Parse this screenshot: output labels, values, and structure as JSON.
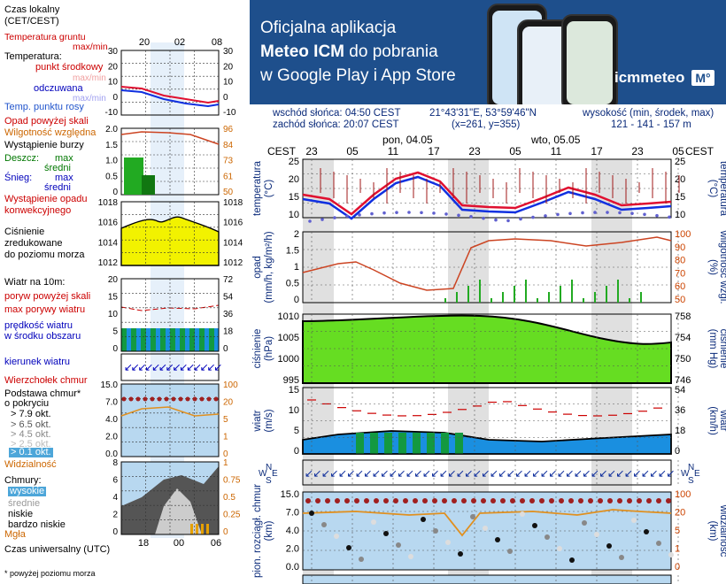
{
  "legend": {
    "time_local": "Czas lokalny",
    "time_local_sub": "(CET/CEST)",
    "top_ticks": [
      "20",
      "02",
      "08"
    ],
    "bottom_ticks": [
      "18",
      "00",
      "06"
    ],
    "temp_ground": "Temperatura gruntu",
    "temp_maxmin": "max/min",
    "temperature": "Temperatura:",
    "mid_point": "punkt środkowy",
    "maxmin_faint": "max/min",
    "perceived": "odczuwana",
    "maxmin_faint2": "max/min",
    "dew_point": "Temp. punktu rosy",
    "precip_above": "Opad powyżej skali",
    "humidity": "Wilgotność względna",
    "storm": "Wystąpienie burzy",
    "rain": "Deszcz:",
    "max_label": "max",
    "mean_label": "średni",
    "snow": "Śnieg:",
    "max_label2": "max",
    "mean_label2": "średni",
    "conv_precip_1": "Wystąpienie opadu",
    "conv_precip_2": "konwekcyjnego",
    "pressure_1": "Ciśnienie",
    "pressure_2": "zredukowane",
    "pressure_3": "do poziomu morza",
    "wind_10m": "Wiatr na 10m:",
    "gust_above": "poryw powyżej skali",
    "max_gust": "max porywy wiatru",
    "wind_speed_1": "prędkość wiatru",
    "wind_speed_2": "w środku obszaru",
    "wind_dir": "kierunek wiatru",
    "cloud_top": "Wierzchołek chmur",
    "cloud_base_1": "Podstawa chmur*",
    "cloud_base_2": "o pokryciu",
    "okt1": "> 7.9 okt.",
    "okt2": "> 6.5 okt.",
    "okt3": "> 4.5 okt.",
    "okt4": "> 2.5 okt.",
    "okt5": "> 0.1 okt.",
    "visibility": "Widzialność",
    "clouds": "Chmury:",
    "high": "wysokie",
    "mid": "średnie",
    "low": "niskie",
    "very_low": "bardzo niskie",
    "fog": "Mgła",
    "utc": "Czas uniwersalny (UTC)",
    "footnote": "* powyżej poziomu morza",
    "axis_temp_l": [
      "30",
      "20",
      "10",
      "0",
      "-10"
    ],
    "axis_temp_r": [
      "30",
      "20",
      "10",
      "0",
      "-10"
    ],
    "axis_hum_l": [
      "2.0",
      "1.5",
      "1.0",
      "0.5",
      "0"
    ],
    "axis_hum_r": [
      "96",
      "84",
      "73",
      "61",
      "50"
    ],
    "axis_pres_l": [
      "1018",
      "1016",
      "1014",
      "1012"
    ],
    "axis_pres_r": [
      "1018",
      "1016",
      "1014",
      "1012"
    ],
    "axis_wind_l": [
      "20",
      "15",
      "10",
      "5",
      "0"
    ],
    "axis_wind_r": [
      "72",
      "54",
      "36",
      "18",
      "0"
    ],
    "axis_cb_l": [
      "15.0",
      "7.0",
      "4.0",
      "2.0",
      "0.0"
    ],
    "axis_cb_r": [
      "100",
      "20",
      "5",
      "1",
      "0"
    ],
    "axis_cl_l": [
      "8",
      "6",
      "4",
      "2",
      "0"
    ],
    "axis_cl_r": [
      "1",
      "0.75",
      "0.5",
      "0.25",
      "0"
    ]
  },
  "banner": {
    "line1": "Oficjalna aplikacja",
    "line2_bold": "Meteo ICM",
    "line2_rest": " do pobrania",
    "line3": "w Google Play i App Store",
    "logo": "icmmeteo",
    "logo_badge": "M°"
  },
  "info": {
    "sunrise": "wschód słońca: 04:50 CEST",
    "sunset": "zachód słońca: 20:07 CEST",
    "coords": "21°43'31\"E, 53°59'46\"N",
    "grid": "(x=261, y=355)",
    "elevation_label": "wysokość (min, środek, max)",
    "elevation_values": "121 - 141 - 157 m"
  },
  "chart": {
    "cest_label": "CEST",
    "day1": "pon, 04.05",
    "day2": "wto, 05.05",
    "hour_ticks": [
      "23",
      "05",
      "11",
      "17",
      "23",
      "05",
      "11",
      "17",
      "23",
      "05"
    ],
    "temp_axis": [
      "25",
      "20",
      "15",
      "10"
    ],
    "temp_label_l": "temperatura\n(°C)",
    "temp_label_l1": "temperatura",
    "temp_label_l2": "(°C)",
    "temp_label_r1": "(°C)",
    "temp_label_r2": "temperatura",
    "precip_axis_l": [
      "2",
      "1.5",
      "1",
      "0.5",
      "0"
    ],
    "precip_axis_r": [
      "100",
      "90",
      "80",
      "70",
      "60",
      "50"
    ],
    "precip_label_l1": "opad",
    "precip_label_l2": "(mm/h, kg/m²/h)",
    "precip_label_r1": "(%)",
    "precip_label_r2": "wilgotność wzgl.",
    "pres_axis_l": [
      "1010",
      "1005",
      "1000",
      "995"
    ],
    "pres_axis_r": [
      "758",
      "754",
      "750",
      "746"
    ],
    "pres_label_l1": "ciśnienie",
    "pres_label_l2": "(hPa)",
    "pres_label_r1": "(mm Hg)",
    "pres_label_r2": "ciśnienie",
    "wind_axis_l": [
      "15",
      "10",
      "5",
      "0"
    ],
    "wind_axis_r": [
      "54",
      "36",
      "18",
      "0"
    ],
    "wind_label_l1": "wiatr",
    "wind_label_l2": "(m/s)",
    "wind_label_r1": "(km/h)",
    "wind_label_r2": "wiatr",
    "compass_w": "W",
    "compass_n": "N",
    "compass_s": "S",
    "compass_e": "E",
    "cb_axis_l": [
      "15.0",
      "7.0",
      "4.0",
      "2.0",
      "0.0"
    ],
    "cb_axis_r": [
      "100",
      "20",
      "5",
      "1",
      "0"
    ],
    "cb_label_l1": "pion. rozciągł. chmur",
    "cb_label_l2": "(km)",
    "cb_label_r1": "(km)",
    "cb_label_r2": "widzialność"
  },
  "colors": {
    "banner_bg": "#1e4f8c",
    "temp": "#e01030",
    "perceived": "#1030e0",
    "dew": "#6060d0",
    "humidity": "#cc4422",
    "pressure_fill": "#66dd22",
    "wind_fill": "#1a8fe0",
    "panel_bg": "#b8d8f0",
    "night_band": "#e0e0e0"
  }
}
